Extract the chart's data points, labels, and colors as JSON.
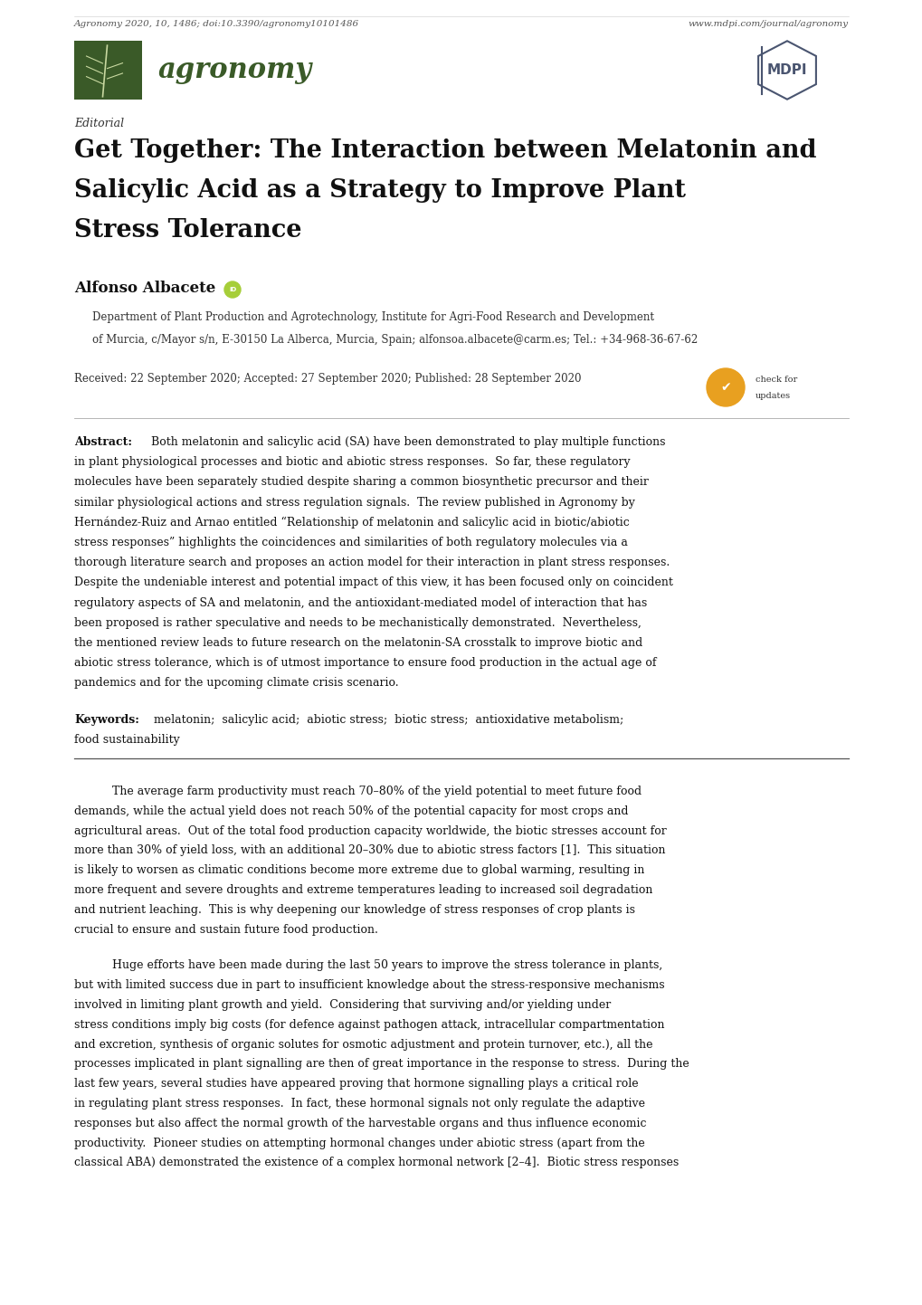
{
  "background_color": "#ffffff",
  "page_width": 10.2,
  "page_height": 14.42,
  "header_logo_color": "#3a5a28",
  "header_text": "agronomy",
  "mdpi_color": "#4a5570",
  "editorial_label": "Editorial",
  "title_line1": "Get Together: The Interaction between Melatonin and",
  "title_line2": "Salicylic Acid as a Strategy to Improve Plant",
  "title_line3": "Stress Tolerance",
  "author": "Alfonso Albacete",
  "affiliation_line1": "Department of Plant Production and Agrotechnology, Institute for Agri-Food Research and Development",
  "affiliation_line2": "of Murcia, c/Mayor s/n, E-30150 La Alberca, Murcia, Spain; alfonsoa.albacete@carm.es; Tel.: +34-968-36-67-62",
  "received_line": "Received: 22 September 2020; Accepted: 27 September 2020; Published: 28 September 2020",
  "abstract_label": "Abstract:",
  "keywords_label": "Keywords:",
  "keywords_text": "melatonin;  salicylic acid;  abiotic stress;  biotic stress;  antioxidative metabolism;",
  "keywords_line2": "food sustainability",
  "footer_left": "Agronomy 2020, 10, 1486; doi:10.3390/agronomy10101486",
  "footer_right": "www.mdpi.com/journal/agronomy",
  "abstract_lines": [
    "Both melatonin and salicylic acid (SA) have been demonstrated to play multiple functions",
    "in plant physiological processes and biotic and abiotic stress responses.  So far, these regulatory",
    "molecules have been separately studied despite sharing a common biosynthetic precursor and their",
    "similar physiological actions and stress regulation signals.  The review published in Agronomy by",
    "Hernández-Ruiz and Arnao entitled “Relationship of melatonin and salicylic acid in biotic/abiotic",
    "stress responses” highlights the coincidences and similarities of both regulatory molecules via a",
    "thorough literature search and proposes an action model for their interaction in plant stress responses.",
    "Despite the undeniable interest and potential impact of this view, it has been focused only on coincident",
    "regulatory aspects of SA and melatonin, and the antioxidant-mediated model of interaction that has",
    "been proposed is rather speculative and needs to be mechanistically demonstrated.  Nevertheless,",
    "the mentioned review leads to future research on the melatonin-SA crosstalk to improve biotic and",
    "abiotic stress tolerance, which is of utmost importance to ensure food production in the actual age of",
    "pandemics and for the upcoming climate crisis scenario."
  ],
  "body_lines_p1": [
    "The average farm productivity must reach 70–80% of the yield potential to meet future food",
    "demands, while the actual yield does not reach 50% of the potential capacity for most crops and",
    "agricultural areas.  Out of the total food production capacity worldwide, the biotic stresses account for",
    "more than 30% of yield loss, with an additional 20–30% due to abiotic stress factors [1].  This situation",
    "is likely to worsen as climatic conditions become more extreme due to global warming, resulting in",
    "more frequent and severe droughts and extreme temperatures leading to increased soil degradation",
    "and nutrient leaching.  This is why deepening our knowledge of stress responses of crop plants is",
    "crucial to ensure and sustain future food production."
  ],
  "body_lines_p2": [
    "Huge efforts have been made during the last 50 years to improve the stress tolerance in plants,",
    "but with limited success due in part to insufficient knowledge about the stress-responsive mechanisms",
    "involved in limiting plant growth and yield.  Considering that surviving and/or yielding under",
    "stress conditions imply big costs (for defence against pathogen attack, intracellular compartmentation",
    "and excretion, synthesis of organic solutes for osmotic adjustment and protein turnover, etc.), all the",
    "processes implicated in plant signalling are then of great importance in the response to stress.  During the",
    "last few years, several studies have appeared proving that hormone signalling plays a critical role",
    "in regulating plant stress responses.  In fact, these hormonal signals not only regulate the adaptive",
    "responses but also affect the normal growth of the harvestable organs and thus influence economic",
    "productivity.  Pioneer studies on attempting hormonal changes under abiotic stress (apart from the",
    "classical ABA) demonstrated the existence of a complex hormonal network [2–4].  Biotic stress responses"
  ]
}
